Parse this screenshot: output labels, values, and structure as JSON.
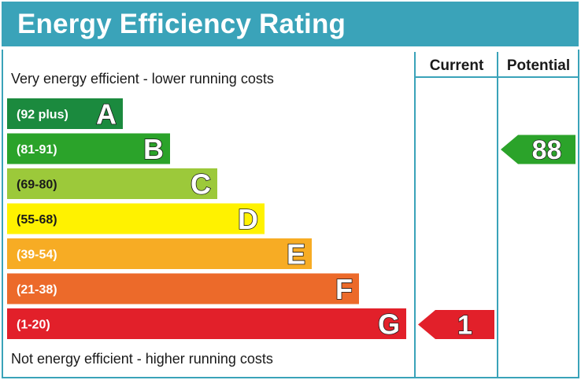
{
  "title": "Energy Efficiency Rating",
  "columns": {
    "current": "Current",
    "potential": "Potential"
  },
  "notes": {
    "top": "Very energy efficient - lower running costs",
    "bottom": "Not energy efficient - higher running costs"
  },
  "chart_data": {
    "type": "bar",
    "categories": [
      "A",
      "B",
      "C",
      "D",
      "E",
      "F",
      "G"
    ],
    "bands": [
      {
        "letter": "A",
        "range": "(92 plus)",
        "color": "#1b8a3e"
      },
      {
        "letter": "B",
        "range": "(81-91)",
        "color": "#2ba32a"
      },
      {
        "letter": "C",
        "range": "(69-80)",
        "color": "#9cc93a"
      },
      {
        "letter": "D",
        "range": "(55-68)",
        "color": "#fff200"
      },
      {
        "letter": "E",
        "range": "(39-54)",
        "color": "#f7ac24"
      },
      {
        "letter": "F",
        "range": "(21-38)",
        "color": "#ec6a2a"
      },
      {
        "letter": "G",
        "range": "(1-20)",
        "color": "#e2202a"
      }
    ],
    "current": {
      "value": 1,
      "band": "G",
      "color": "#e2202a"
    },
    "potential": {
      "value": 88,
      "band": "B",
      "color": "#2ba32a"
    }
  }
}
